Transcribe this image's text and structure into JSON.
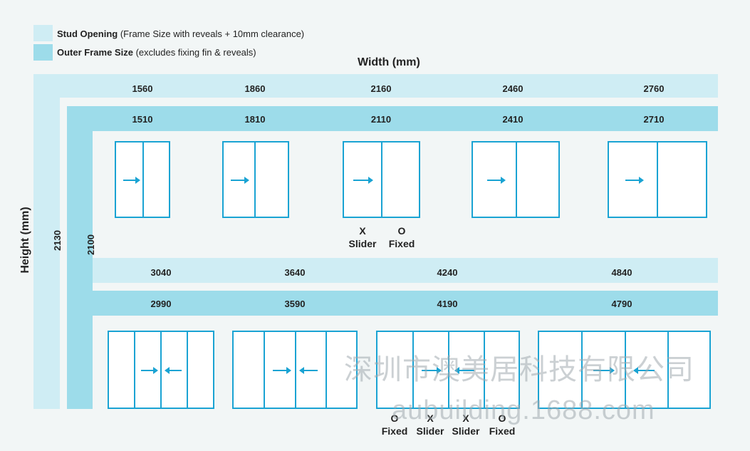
{
  "legend": {
    "stud_title": "Stud Opening",
    "stud_desc": "(Frame Size with reveals + 10mm clearance)",
    "outer_title": "Outer Frame Size",
    "outer_desc": "(excludes fixing fin & reveals)"
  },
  "width_title": "Width (mm)",
  "height_title": "Height (mm)",
  "stud_height": "2130",
  "outer_height": "2100",
  "row1": {
    "stud_widths": [
      "1560",
      "1860",
      "2160",
      "2460",
      "2760"
    ],
    "outer_widths": [
      "1510",
      "1810",
      "2110",
      "2410",
      "2710"
    ],
    "caption": {
      "x": "X",
      "x_label": "Slider",
      "o": "O",
      "o_label": "Fixed"
    }
  },
  "row2": {
    "stud_widths": [
      "3040",
      "3640",
      "4240",
      "4840"
    ],
    "outer_widths": [
      "2990",
      "3590",
      "4190",
      "4790"
    ],
    "caption": {
      "c1": "O",
      "c1_label": "Fixed",
      "c2": "X",
      "c2_label": "Slider",
      "c3": "X",
      "c3_label": "Slider",
      "c4": "O",
      "c4_label": "Fixed"
    }
  },
  "watermark": {
    "line1": "深圳市澳美居科技有限公司",
    "line2": "aubuilding.1688.com"
  },
  "colors": {
    "stud": "#cfedf4",
    "outer": "#9ddcea",
    "frame": "#1aa3d3"
  }
}
